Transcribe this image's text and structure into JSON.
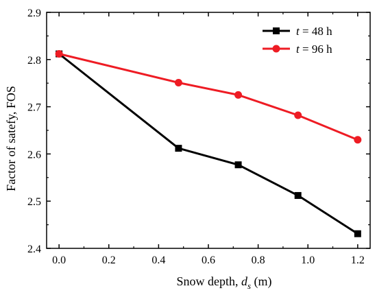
{
  "chart_data": {
    "type": "line",
    "title": "",
    "xlabel": {
      "prefix": "Snow depth, ",
      "symbol": "d",
      "subscript": "s",
      "suffix": " (m)"
    },
    "ylabel": "Factor of satefy, FOS",
    "xlim": [
      -0.05,
      1.25
    ],
    "ylim": [
      2.4,
      2.9
    ],
    "xticks": [
      0.0,
      0.2,
      0.4,
      0.6,
      0.8,
      1.0,
      1.2
    ],
    "xtick_labels": [
      "0.0",
      "0.2",
      "0.4",
      "0.6",
      "0.8",
      "1.0",
      "1.2"
    ],
    "yticks": [
      2.4,
      2.5,
      2.6,
      2.7,
      2.8,
      2.9
    ],
    "ytick_labels": [
      "2.4",
      "2.5",
      "2.6",
      "2.7",
      "2.8",
      "2.9"
    ],
    "grid": false,
    "legend_position": "top-right",
    "series": [
      {
        "name": "t = 48 h",
        "legend": {
          "var": "t",
          "rest": " = 48 h"
        },
        "color": "#000000",
        "marker": "square",
        "x": [
          0.0,
          0.48,
          0.72,
          0.96,
          1.2
        ],
        "y": [
          2.812,
          2.612,
          2.577,
          2.512,
          2.431
        ]
      },
      {
        "name": "t = 96 h",
        "legend": {
          "var": "t",
          "rest": " = 96 h"
        },
        "color": "#ee1c24",
        "marker": "circle",
        "x": [
          0.0,
          0.48,
          0.72,
          0.96,
          1.2
        ],
        "y": [
          2.812,
          2.751,
          2.725,
          2.682,
          2.63
        ]
      }
    ]
  }
}
